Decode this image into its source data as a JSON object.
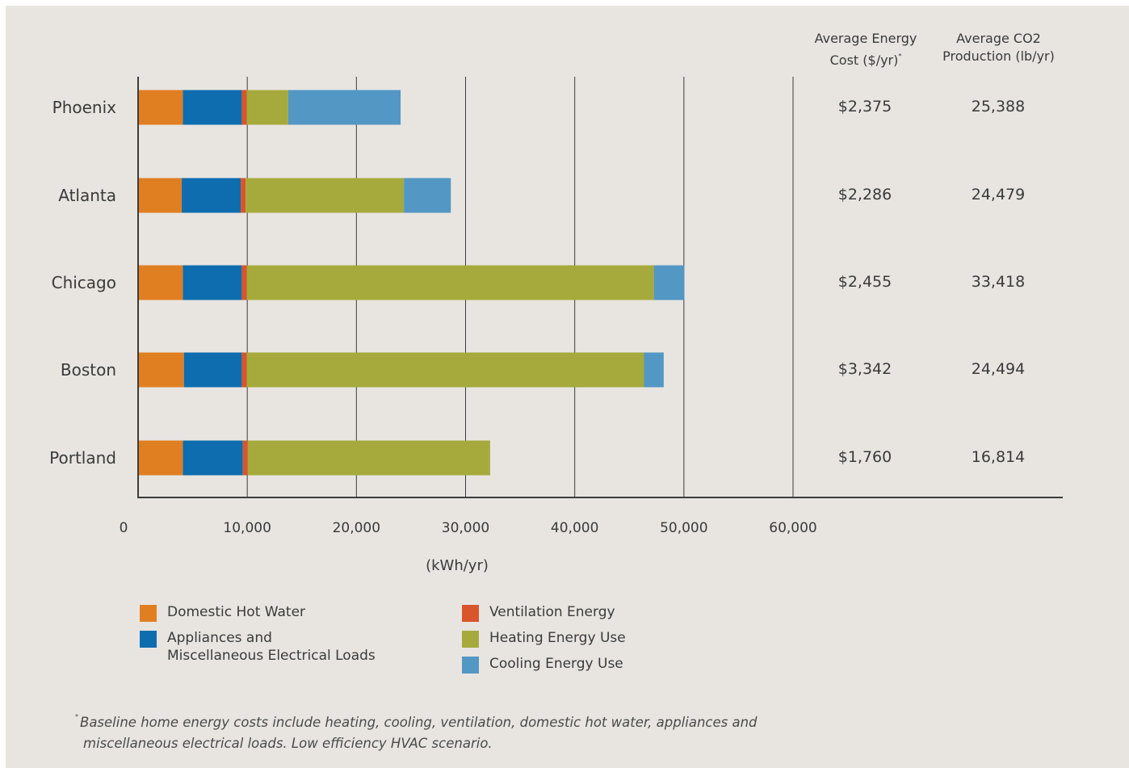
{
  "chart_data": {
    "type": "bar",
    "orientation": "horizontal",
    "stacked": true,
    "categories": [
      "Phoenix",
      "Atlanta",
      "Chicago",
      "Boston",
      "Portland"
    ],
    "xlabel": "(kWh/yr)",
    "xlim": [
      0,
      60000
    ],
    "xticks": [
      0,
      10000,
      20000,
      30000,
      40000,
      50000,
      60000
    ],
    "xtick_labels": [
      "0",
      "10,000",
      "20,000",
      "30,000",
      "40,000",
      "50,000",
      "60,000"
    ],
    "grid": "vertical",
    "legend_position": "bottom",
    "series": [
      {
        "name": "Domestic Hot Water",
        "color": "#e07f22",
        "values": [
          4100,
          4000,
          4100,
          4200,
          4100
        ]
      },
      {
        "name": "Appliances and Miscellaneous Electrical Loads",
        "color": "#0e6dae",
        "values": [
          5400,
          5400,
          5400,
          5300,
          5500
        ]
      },
      {
        "name": "Ventilation Energy",
        "color": "#d9552b",
        "values": [
          450,
          450,
          450,
          450,
          450
        ]
      },
      {
        "name": "Heating Energy Use",
        "color": "#a6aa3c",
        "values": [
          3800,
          14500,
          37300,
          36400,
          22200
        ]
      },
      {
        "name": "Cooling Energy Use",
        "color": "#5397c4",
        "values": [
          10300,
          4300,
          2800,
          1800,
          0
        ]
      }
    ],
    "table": {
      "columns": [
        {
          "title": "Average Energy Cost ($/yr)",
          "footnote_marker": "*"
        },
        {
          "title": "Average CO2 Production (lb/yr)"
        }
      ],
      "rows": [
        {
          "city": "Phoenix",
          "cost": "$2,375",
          "co2": "25,388"
        },
        {
          "city": "Atlanta",
          "cost": "$2,286",
          "co2": "24,479"
        },
        {
          "city": "Chicago",
          "cost": "$2,455",
          "co2": "33,418"
        },
        {
          "city": "Boston",
          "cost": "$3,342",
          "co2": "24,494"
        },
        {
          "city": "Portland",
          "cost": "$1,760",
          "co2": "16,814"
        }
      ]
    }
  },
  "legend": {
    "left": [
      {
        "label": "Domestic Hot Water",
        "color": "#e07f22"
      },
      {
        "label_line1": "Appliances and",
        "label_line2": "Miscellaneous Electrical Loads",
        "color": "#0e6dae"
      }
    ],
    "right": [
      {
        "label": "Ventilation Energy",
        "color": "#d9552b"
      },
      {
        "label": "Heating Energy Use",
        "color": "#a6aa3c"
      },
      {
        "label": "Cooling Energy Use",
        "color": "#5397c4"
      }
    ]
  },
  "columns": {
    "cost_line1": "Average Energy",
    "cost_line2": "Cost ($/yr)",
    "cost_marker": "*",
    "co2_line1": "Average CO2",
    "co2_line2": "Production (lb/yr)"
  },
  "footnote": {
    "marker": "*",
    "line1": "Baseline home energy costs include heating, cooling, ventilation, domestic hot water, appliances and",
    "line2": "miscellaneous electrical loads. Low efficiency HVAC scenario."
  }
}
